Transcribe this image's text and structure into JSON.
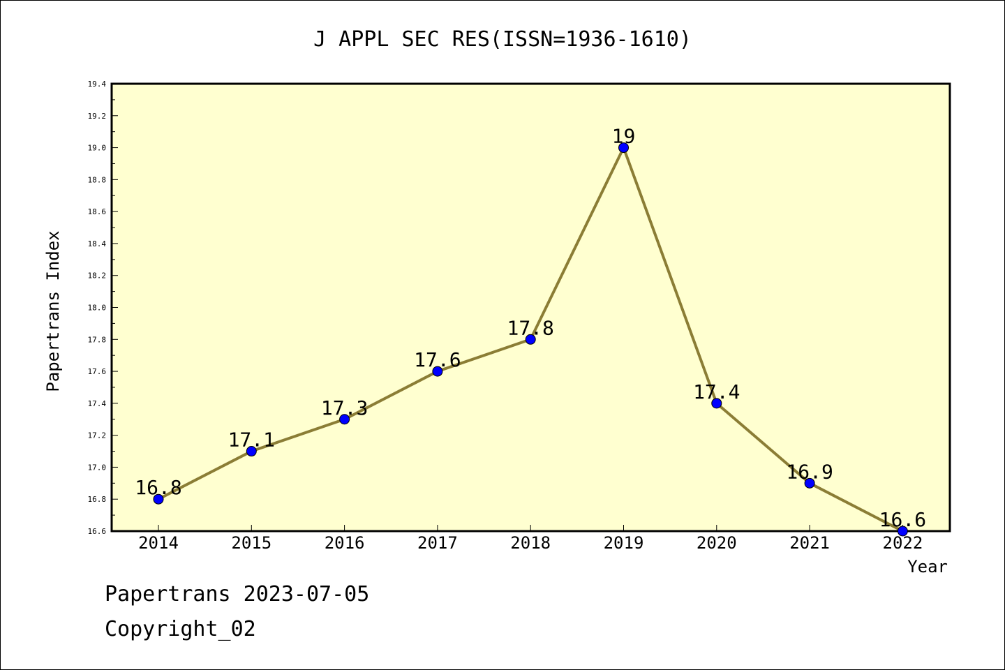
{
  "chart_data": {
    "type": "line",
    "title": "J APPL SEC RES(ISSN=1936-1610)",
    "xlabel": "Year",
    "ylabel": "Papertrans Index",
    "x": [
      "2014",
      "2015",
      "2016",
      "2017",
      "2018",
      "2019",
      "2020",
      "2021",
      "2022"
    ],
    "series": [
      {
        "values": [
          16.8,
          17.1,
          17.3,
          17.6,
          17.8,
          19,
          17.4,
          16.9,
          16.6
        ],
        "labels": [
          "16.8",
          "17.1",
          "17.3",
          "17.6",
          "17.8",
          "19",
          "17.4",
          "16.9",
          "16.6"
        ]
      }
    ],
    "ylim": [
      16.6,
      19.4
    ],
    "yticks": [
      "16.6",
      "16.8",
      "17.0",
      "17.2",
      "17.4",
      "17.6",
      "17.8",
      "18.0",
      "18.2",
      "18.4",
      "18.6",
      "18.8",
      "19.0",
      "19.2",
      "19.4"
    ],
    "grid": false,
    "colors": {
      "plot_background": "#ffffd0",
      "line": "#8b7d35",
      "marker": "#0000ff"
    }
  },
  "footer": {
    "line1": "Papertrans 2023-07-05",
    "line2": "Copyright_02"
  }
}
